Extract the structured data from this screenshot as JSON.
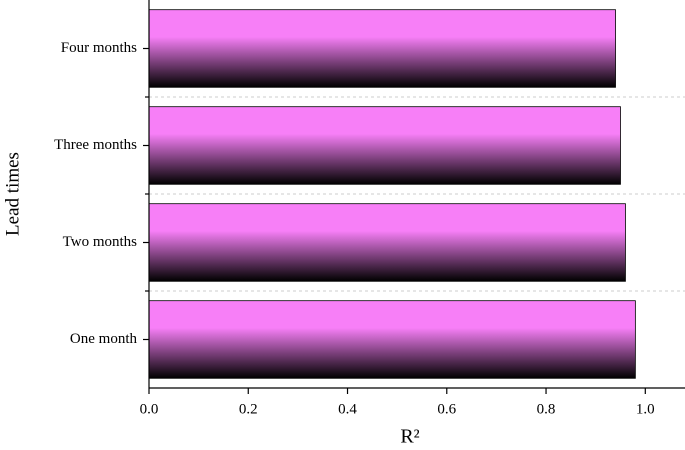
{
  "chart_data": {
    "type": "barh",
    "x_label": "R²",
    "y_label": "Lead times",
    "categories": [
      "One month",
      "Two months",
      "Three months",
      "Four months"
    ],
    "values": [
      0.98,
      0.96,
      0.95,
      0.94
    ],
    "color": "#f77ff7",
    "xlim": [
      0,
      1.08
    ],
    "xticks": [
      {
        "value": 0,
        "label": "0.0"
      },
      {
        "value": 0.2,
        "label": "0.2"
      },
      {
        "value": 0.4,
        "label": "0.4"
      },
      {
        "value": 0.6,
        "label": "0.6"
      },
      {
        "value": 0.8,
        "label": "0.8"
      },
      {
        "value": 1,
        "label": "1.0"
      }
    ],
    "grid": true
  }
}
